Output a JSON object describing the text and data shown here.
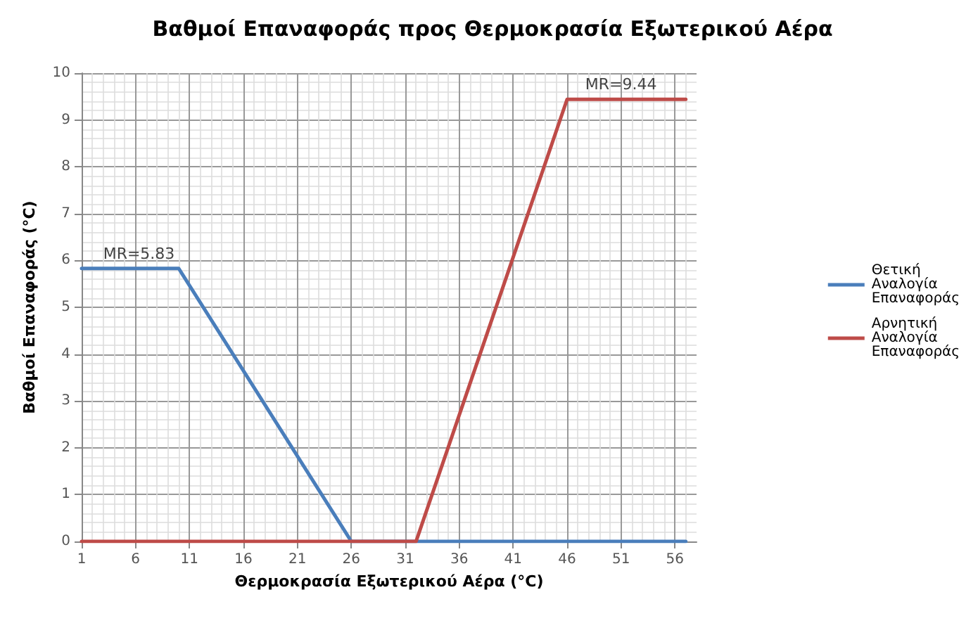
{
  "chart_data": {
    "type": "line",
    "title": "Βαθμοί Επαναφοράς προς Θερμοκρασία Εξωτερικού Αέρα",
    "xlabel": "Θερμοκρασία Εξωτερικού Αέρα (°C)",
    "ylabel": "Βαθμοί Επαναφοράς (°C)",
    "xlim": [
      1,
      58
    ],
    "xticks": [
      1,
      6,
      11,
      16,
      21,
      26,
      31,
      36,
      41,
      46,
      51,
      56
    ],
    "ylim": [
      0,
      10
    ],
    "yticks": [
      0,
      1,
      2,
      3,
      4,
      5,
      6,
      7,
      8,
      9,
      10
    ],
    "grid": true,
    "legend": "right",
    "marker": "none",
    "line_style": "solid",
    "series": [
      {
        "name": "Θετική Αναλογία Επαναφοράς",
        "color": "#4a7ebb",
        "x": [
          1,
          10,
          26,
          57
        ],
        "values": [
          5.83,
          5.83,
          0,
          0
        ]
      },
      {
        "name": "Αρνητική Αναλογία Επαναφοράς",
        "color": "#be4b48",
        "x": [
          1,
          32,
          46,
          57
        ],
        "values": [
          0,
          0,
          9.44,
          9.44
        ]
      }
    ],
    "annotations": [
      {
        "text": "MR=5.83",
        "x": 3,
        "y": 5.83
      },
      {
        "text": "MR=9.44",
        "x": 51,
        "y": 9.44
      }
    ]
  }
}
